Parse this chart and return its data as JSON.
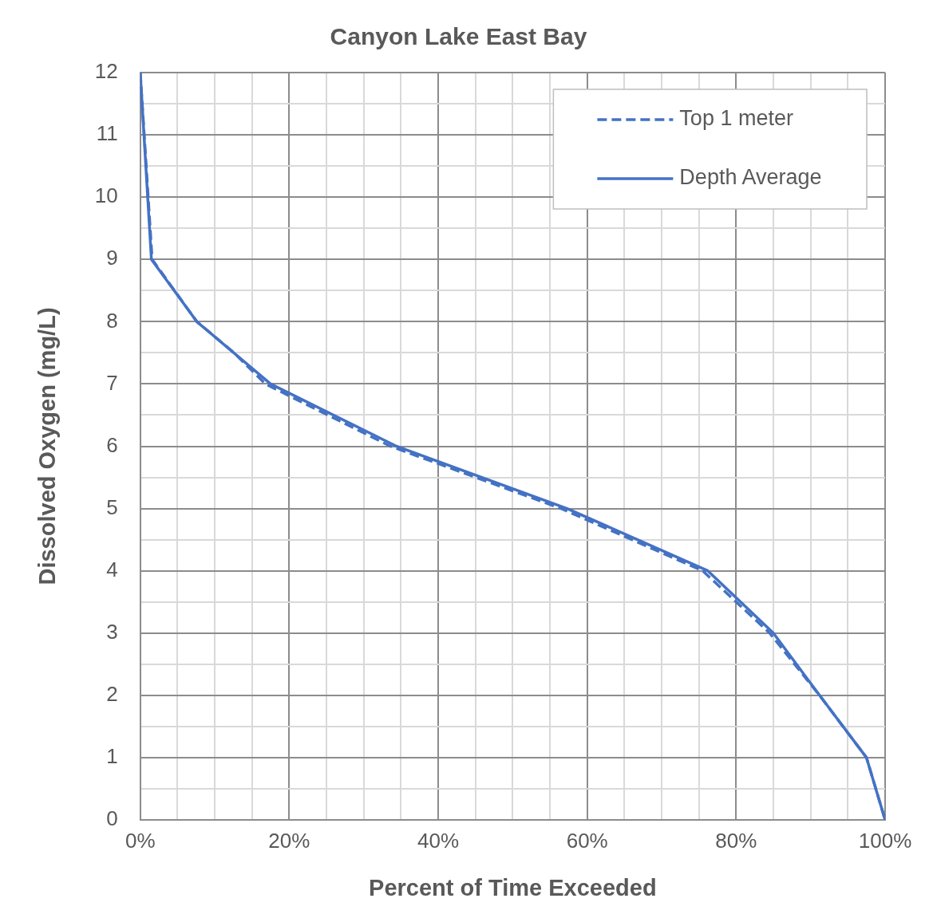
{
  "chart_data": {
    "type": "line",
    "title": "Canyon Lake East Bay",
    "xlabel": "Percent of Time Exceeded",
    "ylabel": "Dissolved Oxygen (mg/L)",
    "xlim": [
      0,
      100
    ],
    "ylim": [
      0,
      12
    ],
    "xticks": [
      {
        "value": 0,
        "label": "0%"
      },
      {
        "value": 5,
        "label": null
      },
      {
        "value": 10,
        "label": null
      },
      {
        "value": 15,
        "label": null
      },
      {
        "value": 20,
        "label": "20%"
      },
      {
        "value": 25,
        "label": null
      },
      {
        "value": 30,
        "label": null
      },
      {
        "value": 35,
        "label": null
      },
      {
        "value": 40,
        "label": "40%"
      },
      {
        "value": 45,
        "label": null
      },
      {
        "value": 50,
        "label": null
      },
      {
        "value": 55,
        "label": null
      },
      {
        "value": 60,
        "label": "60%"
      },
      {
        "value": 65,
        "label": null
      },
      {
        "value": 70,
        "label": null
      },
      {
        "value": 75,
        "label": null
      },
      {
        "value": 80,
        "label": "80%"
      },
      {
        "value": 85,
        "label": null
      },
      {
        "value": 90,
        "label": null
      },
      {
        "value": 95,
        "label": null
      },
      {
        "value": 100,
        "label": "100%"
      }
    ],
    "yticks": [
      0,
      {
        "value": 0.5,
        "label": null
      },
      1,
      {
        "value": 1.5,
        "label": null
      },
      2,
      {
        "value": 2.5,
        "label": null
      },
      3,
      {
        "value": 3.5,
        "label": null
      },
      4,
      {
        "value": 4.5,
        "label": null
      },
      5,
      {
        "value": 5.5,
        "label": null
      },
      6,
      {
        "value": 6.5,
        "label": null
      },
      7,
      {
        "value": 7.5,
        "label": null
      },
      8,
      {
        "value": 8.5,
        "label": null
      },
      9,
      {
        "value": 9.5,
        "label": null
      },
      10,
      {
        "value": 10.5,
        "label": null
      },
      11,
      {
        "value": 11.5,
        "label": null
      },
      12
    ],
    "grid": true,
    "legend": "top right",
    "series": [
      {
        "name": "Top 1 meter",
        "color": "#4472c4",
        "line_style": "dashed",
        "x": [
          0,
          1.6,
          7.6,
          12.6,
          16.8,
          33.6,
          56.5,
          75.5,
          84.5,
          91.2,
          97.5,
          100
        ],
        "values": [
          12,
          9,
          8,
          7.5,
          7,
          6,
          5,
          4,
          3,
          2,
          1,
          0
        ]
      },
      {
        "name": "Depth Average",
        "color": "#4472c4",
        "line_style": "solid",
        "x": [
          0,
          1.5,
          7.6,
          17.5,
          34.4,
          57.3,
          76.2,
          85,
          91.2,
          97.5,
          100
        ],
        "values": [
          12,
          9,
          8,
          7,
          6,
          5,
          4,
          3,
          2,
          1,
          0
        ]
      }
    ]
  }
}
